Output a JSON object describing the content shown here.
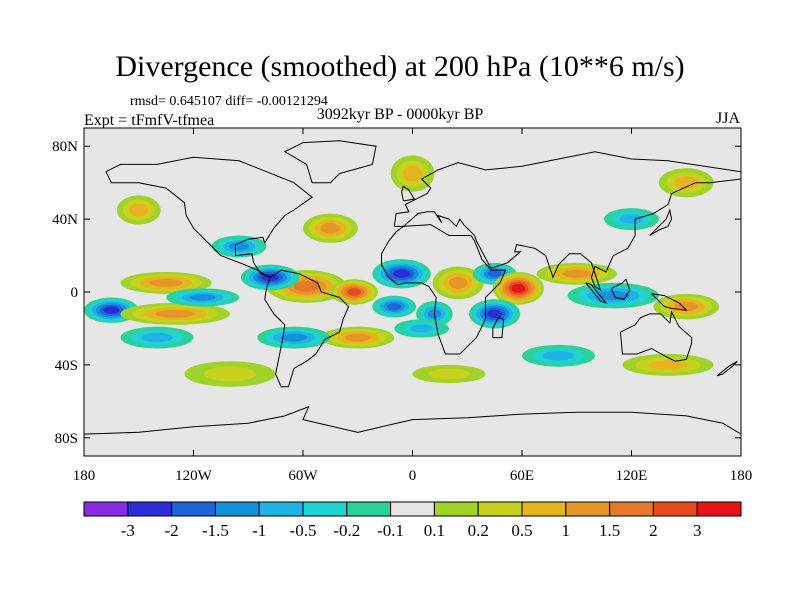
{
  "title": "Divergence (smoothed) at 200 hPa (10**6 m/s)",
  "stats": "rmsd= 0.645107 diff= -0.00121294",
  "experiment": "Expt = tFmfV-tfmea",
  "period": "3092kyr BP - 0000kyr BP",
  "season": "JJA",
  "map": {
    "projection": "cylindrical equidistant",
    "lon_range": [
      -180,
      180
    ],
    "lat_range": [
      -90,
      90
    ],
    "background_color": "#e6e6e6",
    "coastline_color": "#000000"
  },
  "axes": {
    "y_ticks": [
      {
        "label": "80N",
        "lat": 80
      },
      {
        "label": "40N",
        "lat": 40
      },
      {
        "label": "0",
        "lat": 0
      },
      {
        "label": "40S",
        "lat": -40
      },
      {
        "label": "80S",
        "lat": -80
      }
    ],
    "x_ticks": [
      {
        "label": "180",
        "lon": -180
      },
      {
        "label": "120W",
        "lon": -120
      },
      {
        "label": "60W",
        "lon": -60
      },
      {
        "label": "0",
        "lon": 0
      },
      {
        "label": "60E",
        "lon": 60
      },
      {
        "label": "120E",
        "lon": 120
      },
      {
        "label": "180",
        "lon": 180
      }
    ]
  },
  "colorbar": {
    "colors": [
      "#8a2be2",
      "#2d2dd8",
      "#1e64d6",
      "#1490dc",
      "#1eb4e6",
      "#22d2d2",
      "#2ad29a",
      "#e6e6e6",
      "#a0d228",
      "#c8d21e",
      "#e6b41e",
      "#e69628",
      "#e67828",
      "#e64b1e",
      "#e61414"
    ],
    "labels": [
      "-3",
      "-2",
      "-1.5",
      "-1",
      "-0.5",
      "-0.2",
      "-0.1",
      "0.1",
      "0.2",
      "0.5",
      "1",
      "1.5",
      "2",
      "3"
    ]
  },
  "chart_data": {
    "type": "heatmap",
    "title": "Divergence (smoothed) at 200 hPa (10**6 m/s)",
    "variable": "divergence difference",
    "units": "10**6 m/s",
    "levels": [
      -3,
      -2,
      -1.5,
      -1,
      -0.5,
      -0.2,
      -0.1,
      0.1,
      0.2,
      0.5,
      1,
      1.5,
      2,
      3
    ],
    "xlim": [
      -180,
      180
    ],
    "ylim": [
      -90,
      90
    ],
    "features": [
      {
        "lon": -58,
        "lat": 3,
        "lon_radius": 22,
        "lat_radius": 9,
        "value": 1.6
      },
      {
        "lon": -78,
        "lat": 8,
        "lon_radius": 16,
        "lat_radius": 7,
        "value": -2.6
      },
      {
        "lon": -32,
        "lat": 0,
        "lon_radius": 13,
        "lat_radius": 7,
        "value": 2.6
      },
      {
        "lon": -6,
        "lat": 10,
        "lon_radius": 16,
        "lat_radius": 8,
        "value": -2.0
      },
      {
        "lon": -10,
        "lat": -8,
        "lon_radius": 12,
        "lat_radius": 6,
        "value": -1.8
      },
      {
        "lon": 25,
        "lat": 5,
        "lon_radius": 14,
        "lat_radius": 9,
        "value": 1.2
      },
      {
        "lon": 12,
        "lat": -12,
        "lon_radius": 10,
        "lat_radius": 7,
        "value": -1.0
      },
      {
        "lon": 45,
        "lat": 10,
        "lon_radius": 12,
        "lat_radius": 6,
        "value": -1.8
      },
      {
        "lon": 58,
        "lat": 2,
        "lon_radius": 14,
        "lat_radius": 9,
        "value": 3.2
      },
      {
        "lon": 45,
        "lat": -12,
        "lon_radius": 14,
        "lat_radius": 8,
        "value": -2.6
      },
      {
        "lon": 90,
        "lat": 10,
        "lon_radius": 22,
        "lat_radius": 6,
        "value": 1.3
      },
      {
        "lon": 110,
        "lat": -2,
        "lon_radius": 25,
        "lat_radius": 7,
        "value": -1.0
      },
      {
        "lon": 150,
        "lat": -8,
        "lon_radius": 18,
        "lat_radius": 7,
        "value": 1.4
      },
      {
        "lon": -165,
        "lat": -10,
        "lon_radius": 15,
        "lat_radius": 7,
        "value": -2.0
      },
      {
        "lon": -135,
        "lat": 5,
        "lon_radius": 25,
        "lat_radius": 6,
        "value": 1.2
      },
      {
        "lon": -130,
        "lat": -12,
        "lon_radius": 30,
        "lat_radius": 6,
        "value": 1.3
      },
      {
        "lon": -115,
        "lat": -3,
        "lon_radius": 20,
        "lat_radius": 5,
        "value": -1.2
      },
      {
        "lon": -95,
        "lat": 25,
        "lon_radius": 15,
        "lat_radius": 6,
        "value": -1.0
      },
      {
        "lon": -45,
        "lat": 35,
        "lon_radius": 15,
        "lat_radius": 8,
        "value": 1.0
      },
      {
        "lon": -30,
        "lat": -25,
        "lon_radius": 20,
        "lat_radius": 6,
        "value": 1.0
      },
      {
        "lon": 5,
        "lat": -20,
        "lon_radius": 15,
        "lat_radius": 5,
        "value": -0.9
      },
      {
        "lon": -140,
        "lat": -25,
        "lon_radius": 20,
        "lat_radius": 6,
        "value": -0.8
      },
      {
        "lon": -65,
        "lat": -25,
        "lon_radius": 20,
        "lat_radius": 6,
        "value": -1.0
      },
      {
        "lon": -100,
        "lat": -45,
        "lon_radius": 25,
        "lat_radius": 7,
        "value": 0.4
      },
      {
        "lon": 20,
        "lat": -45,
        "lon_radius": 20,
        "lat_radius": 5,
        "value": 0.4
      },
      {
        "lon": 0,
        "lat": 65,
        "lon_radius": 12,
        "lat_radius": 10,
        "value": 0.6
      },
      {
        "lon": -150,
        "lat": 45,
        "lon_radius": 12,
        "lat_radius": 8,
        "value": 0.5
      },
      {
        "lon": 150,
        "lat": 60,
        "lon_radius": 15,
        "lat_radius": 8,
        "value": 0.6
      },
      {
        "lon": 120,
        "lat": 40,
        "lon_radius": 15,
        "lat_radius": 6,
        "value": -0.6
      },
      {
        "lon": 80,
        "lat": -35,
        "lon_radius": 20,
        "lat_radius": 6,
        "value": -0.7
      },
      {
        "lon": 140,
        "lat": -40,
        "lon_radius": 25,
        "lat_radius": 6,
        "value": 0.5
      }
    ]
  }
}
